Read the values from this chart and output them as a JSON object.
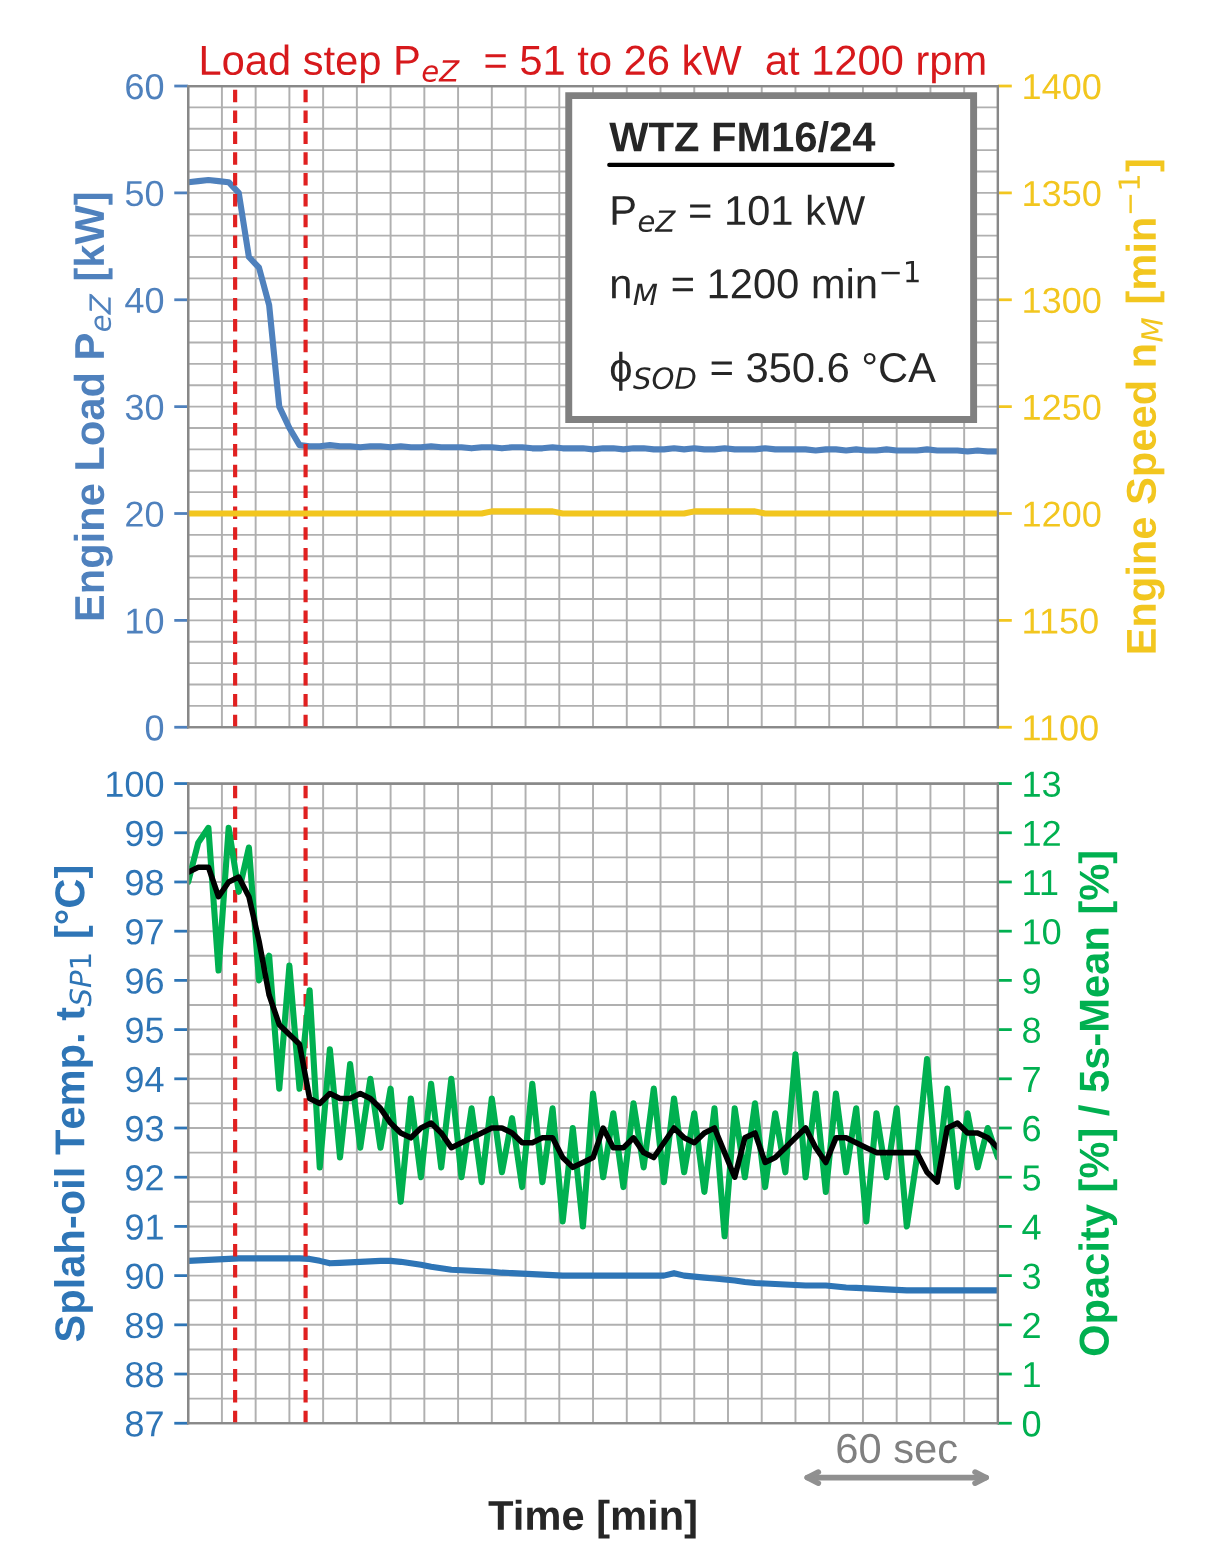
{
  "chart_data": [
    {
      "type": "line",
      "title": "Load step P$_{eZ}$  = 51 to 26 kW  at 1200 rpm",
      "ylabel": "Engine Load P$_{eZ}$ [kW]",
      "y2label": "Engine Speed n$_{M}$ [min$^{−1}$]",
      "annotations": [
        "WTZ FM16/24",
        "P$_{eZ}$ = 101 kW",
        "n$_{M}$ = 1200 min$^{−1}$",
        "ϕ$_{SOD}$ = 350.6 °CA"
      ],
      "categories": [
        null,
        null,
        null,
        null,
        null,
        null,
        null,
        null,
        null,
        null,
        null,
        null,
        null,
        null,
        null,
        null,
        null,
        null,
        null,
        null,
        null,
        null,
        null,
        null,
        null,
        null,
        null,
        null,
        null,
        null,
        null,
        null,
        null,
        null,
        null,
        null,
        null,
        null,
        null,
        null,
        null,
        null,
        null,
        null,
        null,
        null,
        null,
        null,
        null,
        null,
        null,
        null,
        null,
        null,
        null,
        null,
        null,
        null,
        null,
        null,
        null,
        null,
        null,
        null,
        null,
        null,
        null,
        null,
        null,
        null,
        null,
        null,
        null,
        null,
        null,
        null,
        null,
        null,
        null,
        null,
        null
      ],
      "series": [
        {
          "color": "#4f81bd",
          "values": [
            51,
            51.1,
            51.2,
            51.1,
            51,
            50,
            44,
            43,
            39.5,
            30,
            28,
            26.4,
            26.3,
            26.3,
            26.4,
            26.3,
            26.3,
            26.2,
            26.3,
            26.3,
            26.2,
            26.3,
            26.2,
            26.2,
            26.3,
            26.2,
            26.2,
            26.2,
            26.1,
            26.2,
            26.2,
            26.1,
            26.2,
            26.2,
            26.1,
            26.1,
            26.2,
            26.1,
            26.1,
            26.1,
            26.0,
            26.1,
            26.1,
            26.0,
            26.1,
            26.1,
            26.0,
            26.0,
            26.1,
            26.0,
            26.1,
            26.0,
            26.0,
            26.1,
            26.0,
            26.0,
            26.0,
            26.1,
            26.0,
            26.0,
            26.0,
            26.0,
            25.9,
            26.0,
            26.0,
            25.9,
            26.0,
            25.9,
            25.9,
            26.0,
            25.9,
            25.9,
            25.9,
            26.0,
            25.9,
            25.9,
            25.9,
            25.8,
            25.9,
            25.8,
            25.8
          ]
        },
        {
          "color": "#f2c61f",
          "axis": "y2",
          "values": [
            1200,
            1200,
            1200,
            1200,
            1200,
            1200,
            1200,
            1200,
            1200,
            1200,
            1200,
            1200,
            1200,
            1200,
            1200,
            1200,
            1200,
            1200,
            1200,
            1200,
            1200,
            1200,
            1200,
            1200,
            1200,
            1200,
            1200,
            1200,
            1200,
            1200,
            1201,
            1201,
            1201,
            1201,
            1201,
            1201,
            1201,
            1200,
            1200,
            1200,
            1200,
            1200,
            1200,
            1200,
            1200,
            1200,
            1200,
            1200,
            1200,
            1200,
            1201,
            1201,
            1201,
            1201,
            1201,
            1201,
            1201,
            1200,
            1200,
            1200,
            1200,
            1200,
            1200,
            1200,
            1200,
            1200,
            1200,
            1200,
            1200,
            1200,
            1200,
            1200,
            1200,
            1200,
            1200,
            1200,
            1200,
            1200,
            1200,
            1200,
            1200
          ]
        }
      ],
      "ylim": [
        0,
        60
      ],
      "yticks": [
        0,
        10,
        20,
        30,
        40,
        50,
        60
      ],
      "y2lim": [
        1100,
        1400
      ],
      "y2ticks": [
        1100,
        1150,
        1200,
        1250,
        1300,
        1350,
        1400
      ],
      "grid": true,
      "tick_labels": "y"
    },
    {
      "type": "line",
      "xlabel": "Time [min]",
      "ylabel": "Splah-oil Temp. t$_{SP1}$ [°C]",
      "y2label": "Opacity [%] / 5s-Mean [%]",
      "annotations": [
        "60 sec"
      ],
      "categories": [
        null,
        null,
        null,
        null,
        null,
        null,
        null,
        null,
        null,
        null,
        null,
        null,
        null,
        null,
        null,
        null,
        null,
        null,
        null,
        null,
        null,
        null,
        null,
        null,
        null,
        null,
        null,
        null,
        null,
        null,
        null,
        null,
        null,
        null,
        null,
        null,
        null,
        null,
        null,
        null,
        null,
        null,
        null,
        null,
        null,
        null,
        null,
        null,
        null,
        null,
        null,
        null,
        null,
        null,
        null,
        null,
        null,
        null,
        null,
        null,
        null,
        null,
        null,
        null,
        null,
        null,
        null,
        null,
        null,
        null,
        null,
        null,
        null,
        null,
        null,
        null,
        null,
        null,
        null,
        null,
        null
      ],
      "series": [
        {
          "color": "#2e75b6",
          "values": [
            90.3,
            90.31,
            90.32,
            90.33,
            90.34,
            90.35,
            90.35,
            90.35,
            90.35,
            90.35,
            90.35,
            90.35,
            90.34,
            90.3,
            90.25,
            90.26,
            90.27,
            90.28,
            90.29,
            90.3,
            90.3,
            90.28,
            90.25,
            90.22,
            90.18,
            90.15,
            90.12,
            90.11,
            90.1,
            90.09,
            90.08,
            90.06,
            90.05,
            90.04,
            90.03,
            90.02,
            90.01,
            90.0,
            90.0,
            90.0,
            90.0,
            90.0,
            90.0,
            90.0,
            90.0,
            90.0,
            90.0,
            90.0,
            90.05,
            90.0,
            89.98,
            89.96,
            89.94,
            89.92,
            89.9,
            89.87,
            89.85,
            89.84,
            89.83,
            89.82,
            89.81,
            89.8,
            89.8,
            89.8,
            89.78,
            89.76,
            89.75,
            89.74,
            89.73,
            89.72,
            89.71,
            89.7,
            89.7,
            89.7,
            89.7,
            89.7,
            89.7,
            89.7,
            89.7,
            89.7,
            89.7
          ]
        },
        {
          "color": "#00b050",
          "axis": "y2",
          "values": [
            11.0,
            11.8,
            12.1,
            9.2,
            12.1,
            10.8,
            11.7,
            9.0,
            9.5,
            6.8,
            9.3,
            6.8,
            8.8,
            5.2,
            7.6,
            5.4,
            7.3,
            5.6,
            7.0,
            5.6,
            6.8,
            4.5,
            6.6,
            5.0,
            6.9,
            5.2,
            7.0,
            5.0,
            6.4,
            4.9,
            6.6,
            5.1,
            6.2,
            4.8,
            6.9,
            4.9,
            6.4,
            4.1,
            6.0,
            4.0,
            6.7,
            5.0,
            6.3,
            4.8,
            6.5,
            5.2,
            6.8,
            4.9,
            6.6,
            5.1,
            6.3,
            4.7,
            6.4,
            3.8,
            6.4,
            5.0,
            6.5,
            4.8,
            6.3,
            5.1,
            7.5,
            5.0,
            6.7,
            4.7,
            6.7,
            5.1,
            6.4,
            4.1,
            6.3,
            5.0,
            6.4,
            4.0,
            5.4,
            7.4,
            5.0,
            6.8,
            4.8,
            6.3,
            5.2,
            6.0,
            5.4
          ]
        },
        {
          "color": "#000000",
          "axis": "y2",
          "values": [
            11.2,
            11.3,
            11.3,
            10.7,
            11.0,
            11.1,
            10.7,
            9.8,
            8.7,
            8.1,
            7.9,
            7.7,
            6.6,
            6.5,
            6.7,
            6.6,
            6.6,
            6.7,
            6.6,
            6.4,
            6.1,
            5.9,
            5.8,
            6.0,
            6.1,
            5.9,
            5.6,
            5.7,
            5.8,
            5.9,
            6.0,
            6.0,
            5.9,
            5.7,
            5.7,
            5.8,
            5.8,
            5.4,
            5.2,
            5.3,
            5.4,
            6.0,
            5.6,
            5.6,
            5.8,
            5.5,
            5.4,
            5.7,
            6.0,
            5.8,
            5.7,
            5.9,
            6.0,
            5.5,
            5.0,
            5.8,
            5.9,
            5.3,
            5.4,
            5.6,
            5.8,
            6.0,
            5.6,
            5.3,
            5.8,
            5.8,
            5.7,
            5.6,
            5.5,
            5.5,
            5.5,
            5.5,
            5.5,
            5.1,
            4.9,
            6.0,
            6.1,
            5.9,
            5.9,
            5.8,
            5.6
          ]
        }
      ],
      "ylim": [
        87,
        100
      ],
      "yticks": [
        87,
        88,
        89,
        90,
        91,
        92,
        93,
        94,
        95,
        96,
        97,
        98,
        99,
        100
      ],
      "y2lim": [
        0,
        13
      ],
      "y2ticks": [
        0,
        1,
        2,
        3,
        4,
        5,
        6,
        7,
        8,
        9,
        10,
        11,
        12,
        13
      ],
      "grid": true,
      "tick_labels": "y"
    }
  ]
}
